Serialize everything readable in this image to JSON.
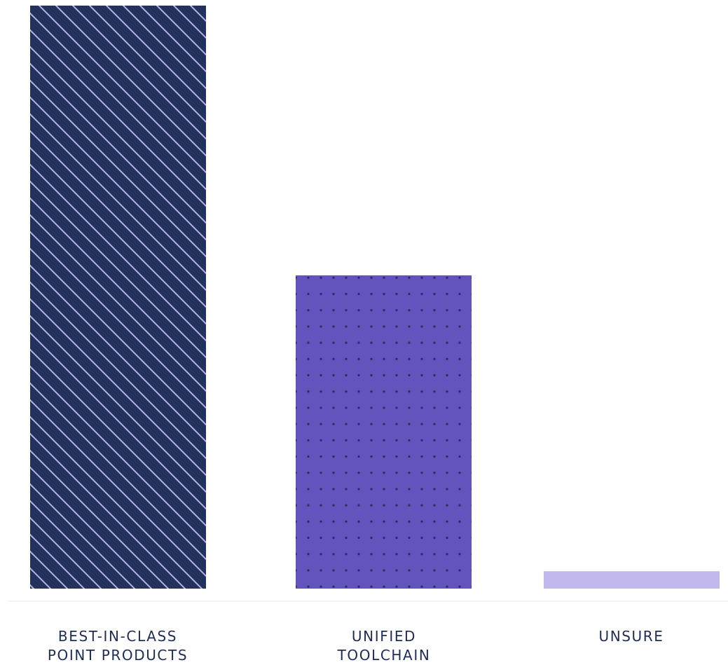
{
  "chart_data": {
    "type": "bar",
    "title": "",
    "xlabel": "",
    "ylabel": "",
    "ylim": [
      0,
      100
    ],
    "categories": [
      {
        "lines": [
          "BEST-IN-CLASS",
          "POINT PRODUCTS"
        ]
      },
      {
        "lines": [
          "UNIFIED",
          "TOOLCHAIN"
        ]
      },
      {
        "lines": [
          "UNSURE"
        ]
      }
    ],
    "values": [
      67,
      36,
      2
    ],
    "colors": {
      "bar_1": "#22325a",
      "bar_1_stripes": "#b6aef0",
      "bar_2": "#6354bd",
      "bar_2_dots": "#2a2f5e",
      "bar_3": "#c2b8ee",
      "baseline": "#e8e9ee",
      "label_text": "#1e2d54"
    },
    "patterns": [
      "diagonal-stripes",
      "dots",
      "solid"
    ],
    "grid": false,
    "legend": "none"
  }
}
